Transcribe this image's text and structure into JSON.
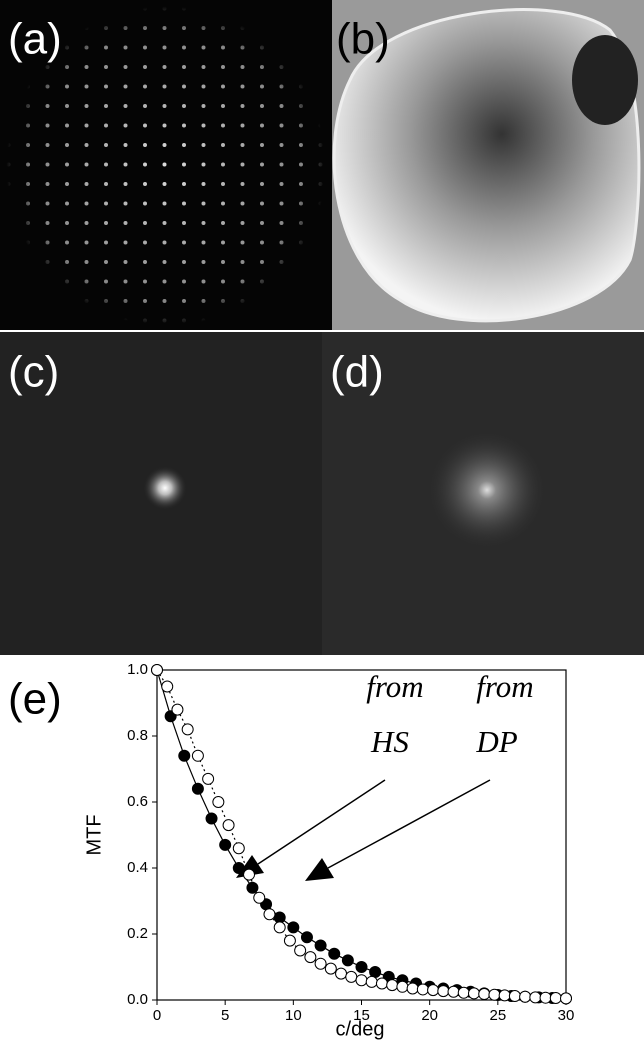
{
  "panels": [
    "(a)",
    "(b)",
    "(c)",
    "(d)"
  ],
  "chart_data": {
    "type": "line",
    "panel_label": "(e)",
    "xlabel": "c/deg",
    "ylabel": "MTF",
    "xlim": [
      0,
      30
    ],
    "xticks": [
      0,
      5,
      10,
      15,
      20,
      25,
      30
    ],
    "ylim": [
      0,
      1
    ],
    "yticks": [
      {
        "value": 0,
        "label": "0.0"
      },
      0.2,
      0.4,
      0.6,
      0.8,
      {
        "value": 1,
        "label": "1.0"
      }
    ],
    "annotations": [
      [
        "from",
        "HS"
      ],
      [
        "from",
        "DP"
      ]
    ],
    "series": [
      {
        "color": "#000000",
        "marker": "filled",
        "linestyle": "solid",
        "x": [
          0,
          1,
          2,
          3,
          4,
          5,
          6,
          7,
          8,
          9,
          10,
          11,
          12,
          13,
          14,
          15,
          16,
          17,
          18,
          19,
          20,
          21,
          22,
          23,
          24,
          25,
          26,
          27,
          28,
          29,
          30
        ],
        "values": [
          1.0,
          0.86,
          0.74,
          0.64,
          0.55,
          0.47,
          0.4,
          0.34,
          0.29,
          0.25,
          0.22,
          0.19,
          0.165,
          0.14,
          0.12,
          0.1,
          0.085,
          0.07,
          0.06,
          0.05,
          0.04,
          0.035,
          0.03,
          0.025,
          0.02,
          0.015,
          0.012,
          0.01,
          0.008,
          0.006,
          0.005
        ]
      },
      {
        "color": "#000000",
        "marker": "open",
        "linestyle": "dotted",
        "x": [
          0,
          0.75,
          1.5,
          2.25,
          3,
          3.75,
          4.5,
          5.25,
          6,
          6.75,
          7.5,
          8.25,
          9,
          9.75,
          10.5,
          11.25,
          12,
          12.75,
          13.5,
          14.25,
          15,
          15.75,
          16.5,
          17.25,
          18,
          18.75,
          19.5,
          20.25,
          21,
          21.75,
          22.5,
          23.25,
          24,
          24.75,
          25.5,
          26.25,
          27,
          27.75,
          28.5,
          29.25,
          30
        ],
        "values": [
          1.0,
          0.95,
          0.88,
          0.82,
          0.74,
          0.67,
          0.6,
          0.53,
          0.46,
          0.38,
          0.31,
          0.26,
          0.22,
          0.18,
          0.15,
          0.13,
          0.11,
          0.095,
          0.08,
          0.07,
          0.06,
          0.055,
          0.05,
          0.045,
          0.04,
          0.035,
          0.032,
          0.03,
          0.027,
          0.025,
          0.022,
          0.02,
          0.018,
          0.016,
          0.014,
          0.012,
          0.01,
          0.008,
          0.007,
          0.006,
          0.005
        ]
      }
    ]
  }
}
